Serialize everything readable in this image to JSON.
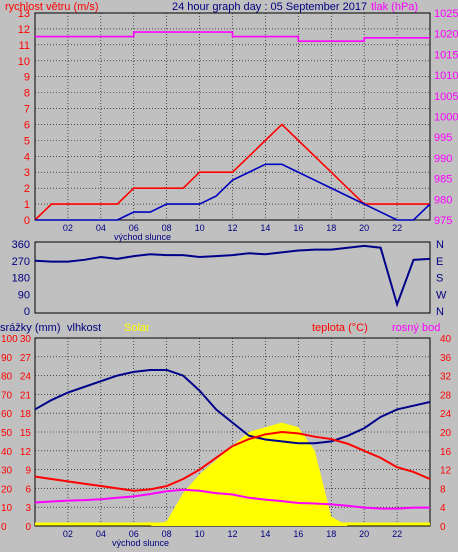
{
  "chart_data": [
    {
      "type": "line",
      "title": "24 hour graph day : 05 September 2017",
      "left_axis_label": "rychlost větru (m/s)",
      "right_axis_label": "tlak (hPa)",
      "x_tick_labels": [
        "02",
        "04",
        "06",
        "08",
        "10",
        "12",
        "14",
        "16",
        "18",
        "20",
        "22"
      ],
      "x_caption": "východ slunce",
      "left_ticks": [
        "0",
        "1",
        "2",
        "3",
        "4",
        "5",
        "6",
        "7",
        "8",
        "9",
        "10",
        "11",
        "12",
        "13"
      ],
      "right_ticks": [
        "975",
        "980",
        "985",
        "990",
        "995",
        "1000",
        "1005",
        "1010",
        "1015",
        "1020",
        "1025"
      ],
      "ylim_left": [
        0,
        13
      ],
      "ylim_right": [
        975,
        1025
      ],
      "grid": true,
      "colors": {
        "gust": "#ff0000",
        "wind": "#0000c0",
        "pressure": "#ff00ff",
        "left_axis": "#ff0000",
        "right_axis": "#ff00ff"
      },
      "x_hours": [
        0,
        1,
        2,
        3,
        4,
        5,
        6,
        7,
        8,
        9,
        10,
        11,
        12,
        13,
        14,
        15,
        16,
        17,
        18,
        19,
        20,
        21,
        22,
        23,
        24
      ],
      "series": [
        {
          "key": "gust",
          "axis": "left",
          "values": [
            0,
            1,
            1,
            1,
            1,
            1,
            2,
            2,
            2,
            2,
            3,
            3,
            3,
            4,
            5,
            6,
            5,
            4,
            3,
            2,
            1,
            1,
            1,
            1,
            1
          ]
        },
        {
          "key": "wind",
          "axis": "left",
          "values": [
            0,
            0,
            0,
            0,
            0,
            0,
            0.5,
            0.5,
            1,
            1,
            1,
            1.5,
            2.5,
            3,
            3.5,
            3.5,
            3,
            2.5,
            2,
            1.5,
            1,
            0.5,
            0,
            0,
            1
          ]
        },
        {
          "key": "pressure",
          "axis": "right",
          "values": [
            1019.3,
            1019.3,
            1019.3,
            1019.3,
            1019.3,
            1019.3,
            1020.4,
            1020.4,
            1020.4,
            1020.4,
            1020.4,
            1020.4,
            1019.3,
            1019.3,
            1019.3,
            1019.3,
            1018.2,
            1018.2,
            1018.2,
            1018.2,
            1019.0,
            1019.0,
            1019.0,
            1019.0,
            1019.0
          ]
        }
      ]
    },
    {
      "type": "line",
      "left_ticks": [
        "0",
        "90",
        "180",
        "270",
        "360"
      ],
      "right_ticks": [
        "N",
        "E",
        "S",
        "W",
        "N"
      ],
      "ylim": [
        0,
        360
      ],
      "color": "#00008b",
      "x_hours": [
        0,
        1,
        2,
        3,
        4,
        5,
        6,
        7,
        8,
        9,
        10,
        11,
        12,
        13,
        14,
        15,
        16,
        17,
        18,
        19,
        20,
        21,
        22,
        23,
        24
      ],
      "values": [
        270,
        265,
        265,
        275,
        290,
        280,
        295,
        305,
        300,
        300,
        290,
        295,
        300,
        310,
        305,
        315,
        325,
        330,
        330,
        340,
        350,
        340,
        35,
        275,
        280
      ]
    },
    {
      "type": "line",
      "legend": {
        "rain": "srážky (mm)",
        "humidity": "vlhkost",
        "solar": "Solar",
        "temperature": "teplota (°C)",
        "dew": "rosný bod"
      },
      "left_outer_ticks": [
        "0",
        "10",
        "20",
        "30",
        "40",
        "50",
        "60",
        "70",
        "80",
        "90",
        "100"
      ],
      "left_inner_ticks": [
        "0",
        "3",
        "6",
        "9",
        "12",
        "15",
        "18",
        "21",
        "24",
        "27",
        "30"
      ],
      "right_ticks": [
        "0",
        "4",
        "8",
        "12",
        "16",
        "20",
        "24",
        "28",
        "32",
        "36",
        "40"
      ],
      "x_tick_labels": [
        "02",
        "04",
        "06",
        "08",
        "10",
        "12",
        "14",
        "16",
        "18",
        "20",
        "22"
      ],
      "x_caption": "východ slunce",
      "grid": true,
      "colors": {
        "rain": "#ff00ff",
        "humidity": "#00008b",
        "solar": "#ffff00",
        "temperature": "#ff0000",
        "dew": "#ff00ff",
        "left_axis": "#ff0000",
        "right_axis": "#ff0000"
      },
      "x_hours": [
        0,
        1,
        2,
        3,
        4,
        5,
        6,
        7,
        8,
        9,
        10,
        11,
        12,
        13,
        14,
        15,
        16,
        17,
        18,
        19,
        20,
        21,
        22,
        23,
        24
      ],
      "series": [
        {
          "key": "humidity",
          "axis": "left_outer",
          "values": [
            62,
            67,
            71,
            74,
            77,
            80,
            82,
            83,
            83,
            80,
            72,
            62,
            55,
            48,
            46,
            45,
            44,
            44,
            45,
            48,
            52,
            58,
            62,
            64,
            66
          ]
        },
        {
          "key": "temperature",
          "axis": "right",
          "values": [
            10.5,
            10,
            9.5,
            9,
            8.5,
            8,
            7.5,
            7.8,
            8.5,
            10,
            12,
            14.5,
            17,
            18.5,
            19.5,
            20,
            19.7,
            19,
            18.5,
            17.5,
            16,
            14.5,
            12.5,
            11.5,
            10
          ]
        },
        {
          "key": "dew",
          "axis": "right",
          "values": [
            5,
            5.2,
            5.4,
            5.5,
            5.7,
            6,
            6.3,
            6.8,
            7.4,
            7.7,
            7.5,
            7,
            6.7,
            6,
            5.6,
            5.3,
            4.9,
            4.8,
            4.6,
            4.3,
            3.9,
            3.7,
            3.7,
            3.9,
            3.9
          ]
        },
        {
          "key": "solar",
          "axis": "right",
          "values": [
            0,
            0,
            0,
            0,
            0,
            0,
            0,
            0,
            1,
            7,
            11,
            14,
            17,
            20,
            21,
            22,
            21,
            16,
            2,
            0,
            0,
            0,
            0,
            0,
            0
          ]
        },
        {
          "key": "rain",
          "axis": "left_inner",
          "values": [
            0,
            0,
            0,
            0,
            0,
            0,
            0,
            0,
            0,
            0,
            0,
            0,
            0,
            0,
            0,
            0,
            0,
            0,
            0,
            0,
            0,
            0,
            0,
            0,
            0
          ]
        }
      ]
    }
  ]
}
